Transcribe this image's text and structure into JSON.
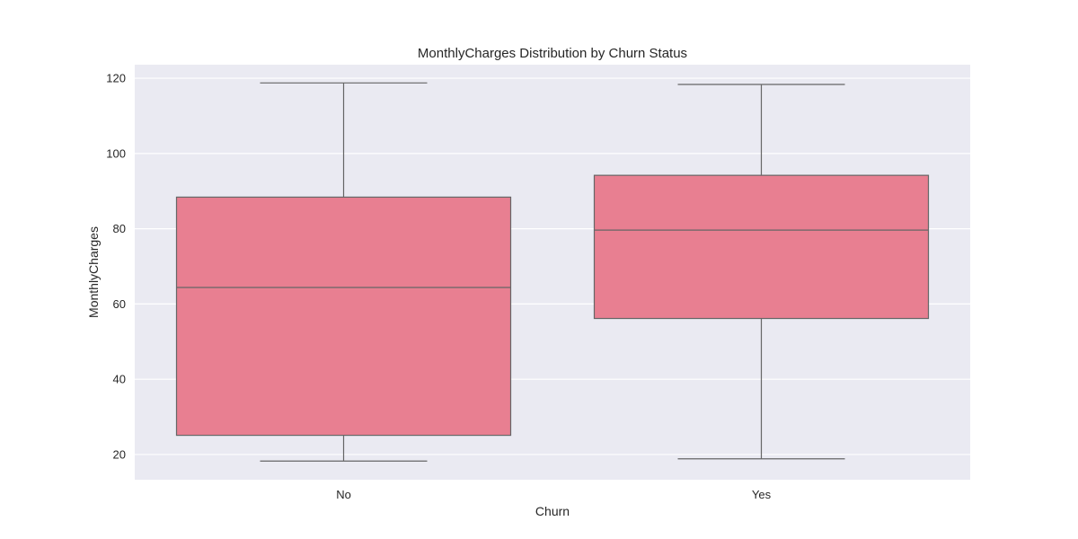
{
  "chart_data": {
    "type": "box",
    "title": "MonthlyCharges Distribution by Churn Status",
    "xlabel": "Churn",
    "ylabel": "MonthlyCharges",
    "ylim": [
      13.3,
      123.6
    ],
    "yticks": [
      20,
      40,
      60,
      80,
      100,
      120
    ],
    "grid": true,
    "categories": [
      "No",
      "Yes"
    ],
    "boxes": [
      {
        "category": "No",
        "whisker_low": 18.25,
        "q1": 25.1,
        "median": 64.4,
        "q3": 88.4,
        "whisker_high": 118.75
      },
      {
        "category": "Yes",
        "whisker_low": 18.85,
        "q1": 56.15,
        "median": 79.65,
        "q3": 94.2,
        "whisker_high": 118.35
      }
    ],
    "colors": {
      "plot_background": "#eaeaf2",
      "grid": "#ffffff",
      "box_fill": "#e87f91",
      "box_line": "#666666",
      "text": "#262626"
    }
  }
}
